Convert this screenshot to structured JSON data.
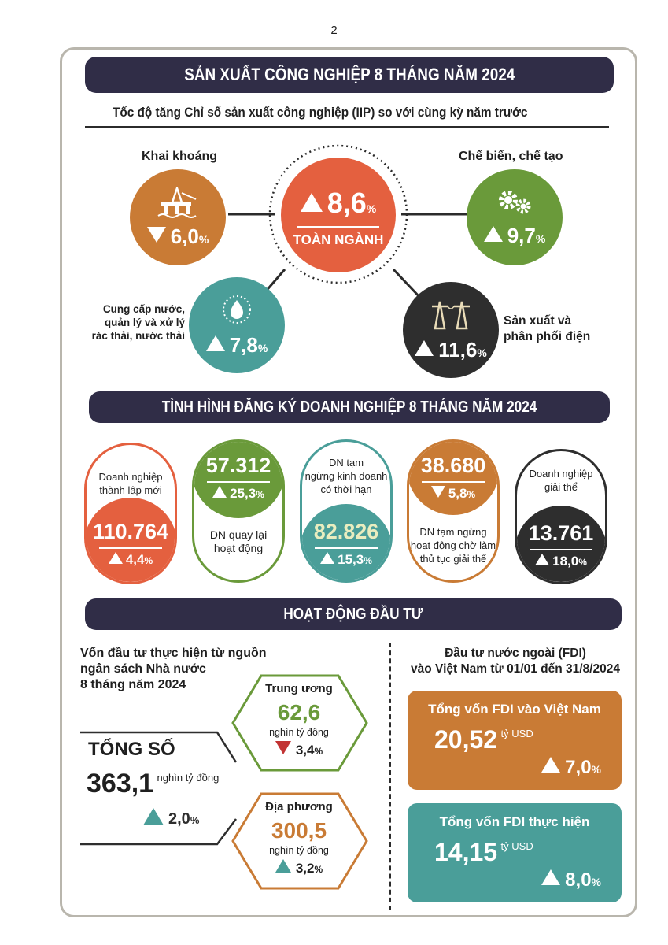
{
  "page_number": "2",
  "colors": {
    "navy": "#302d47",
    "orange": "#e4603f",
    "brown": "#c97b35",
    "green": "#6a9a3a",
    "teal": "#4a9e99",
    "dark": "#2e2e2e",
    "cream": "#e9edbf",
    "red": "#c23333"
  },
  "section1": {
    "title": "SẢN XUẤT CÔNG NGHIỆP 8 THÁNG NĂM 2024",
    "subtitle": "Tốc độ tăng Chỉ số sản xuất công nghiệp (IIP) so với cùng kỳ năm trước",
    "center": {
      "value": "8,6",
      "unit": "%",
      "label": "TOÀN NGÀNH",
      "direction": "up"
    },
    "mining": {
      "label": "Khai khoáng",
      "value": "6,0",
      "unit": "%",
      "direction": "down",
      "icon": "oil-rig-icon"
    },
    "manufacturing": {
      "label": "Chế biến, chế tạo",
      "value": "9,7",
      "unit": "%",
      "direction": "up",
      "icon": "gears-icon"
    },
    "water": {
      "label_lines": [
        "Cung cấp nước,",
        "quản lý và xử lý",
        "rác thải, nước thải"
      ],
      "value": "7,8",
      "unit": "%",
      "direction": "up",
      "icon": "water-drop-icon"
    },
    "electricity": {
      "label_lines": [
        "Sản xuất và",
        "phân phối điện"
      ],
      "value": "11,6",
      "unit": "%",
      "direction": "up",
      "icon": "power-tower-icon"
    }
  },
  "section2": {
    "title": "TÌNH HÌNH ĐĂNG KÝ DOANH NGHIỆP 8 THÁNG NĂM 2024",
    "items": [
      {
        "label_lines": [
          "Doanh nghiệp",
          "thành lập mới"
        ],
        "value": "110.764",
        "pct": "4,4",
        "unit": "%",
        "direction": "up"
      },
      {
        "label_lines": [
          "DN quay lại",
          "hoạt động"
        ],
        "value": "57.312",
        "pct": "25,3",
        "unit": "%",
        "direction": "up"
      },
      {
        "label_lines": [
          "DN tạm",
          "ngừng kinh doanh",
          "có thời hạn"
        ],
        "value": "82.826",
        "pct": "15,3",
        "unit": "%",
        "direction": "up"
      },
      {
        "label_lines": [
          "DN tạm ngừng",
          "hoạt động chờ làm",
          "thủ tục giải thể"
        ],
        "value": "38.680",
        "pct": "5,8",
        "unit": "%",
        "direction": "down"
      },
      {
        "label_lines": [
          "Doanh nghiệp",
          "giải thể"
        ],
        "value": "13.761",
        "pct": "18,0",
        "unit": "%",
        "direction": "up"
      }
    ]
  },
  "section3": {
    "title": "HOẠT ĐỘNG ĐẦU TƯ",
    "budget": {
      "heading_lines": [
        "Vốn đầu tư thực hiện từ nguồn",
        "ngân sách Nhà nước",
        "8 tháng năm 2024"
      ],
      "total_label": "TỔNG SỐ",
      "total_value": "363,1",
      "total_unit": "nghìn tỷ đồng",
      "total_pct": "2,0",
      "pct_unit": "%",
      "central": {
        "label": "Trung ương",
        "value": "62,6",
        "unit": "nghìn tỷ đồng",
        "pct": "3,4",
        "direction": "down"
      },
      "local": {
        "label": "Địa phương",
        "value": "300,5",
        "unit": "nghìn tỷ đồng",
        "pct": "3,2",
        "direction": "up"
      }
    },
    "fdi": {
      "heading_lines": [
        "Đầu tư nước ngoài (FDI)",
        "vào Việt Nam từ 01/01 đến 31/8/2024"
      ],
      "registered": {
        "label": "Tổng vốn FDI vào Việt Nam",
        "value": "20,52",
        "unit": "tỷ USD",
        "pct": "7,0",
        "pct_unit": "%"
      },
      "disbursed": {
        "label": "Tổng vốn FDI thực hiện",
        "value": "14,15",
        "unit": "tỷ USD",
        "pct": "8,0",
        "pct_unit": "%"
      }
    }
  }
}
